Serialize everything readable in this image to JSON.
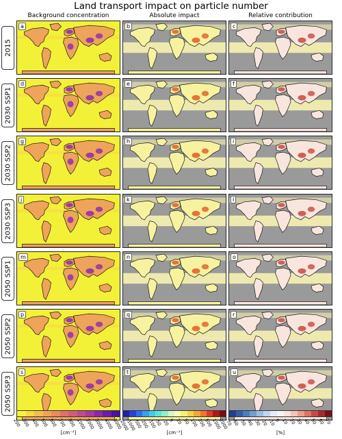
{
  "chart_data": {
    "type": "heatmap",
    "title": "Land transport impact on particle number",
    "columns": [
      "Background concentration",
      "Absolute impact",
      "Relative contribution"
    ],
    "rows": [
      "2015",
      "2030 SSP1",
      "2030 SSP2",
      "2030 SSP3",
      "2050 SSP1",
      "2050 SSP2",
      "2050 SSP3"
    ],
    "panel_letters": [
      "a",
      "b",
      "c",
      "d",
      "e",
      "f",
      "g",
      "h",
      "i",
      "j",
      "k",
      "l",
      "m",
      "n",
      "o",
      "p",
      "q",
      "r",
      "s",
      "t",
      "u"
    ],
    "colorbars": [
      {
        "name": "background",
        "ticks": [
          "200",
          "300",
          "400",
          "500",
          "600",
          "700",
          "800",
          "1000",
          "2000",
          "3000",
          "4000",
          "5000"
        ],
        "unit": "[cm⁻³]",
        "colors": [
          "#f7f43a",
          "#f7d93d",
          "#f5bd4a",
          "#f0a257",
          "#e98a63",
          "#df7070",
          "#d25c80",
          "#c04a91",
          "#aa38a0",
          "#8f27ac",
          "#6e19b0",
          "#4a0fa8"
        ]
      },
      {
        "name": "absolute",
        "ticks": [
          "-2000",
          "-1000",
          "-500",
          "-200",
          "-100",
          "-50",
          "-20",
          "0",
          "20",
          "50",
          "100",
          "200",
          "500",
          "1000",
          "2000"
        ],
        "unit": "[cm⁻³]",
        "colors": [
          "#1f1fa8",
          "#2a3fd8",
          "#2f6df0",
          "#35a0f5",
          "#40ccf0",
          "#5ee4d8",
          "#8ef0cc",
          "#d6f7c8",
          "#fafab8",
          "#f8f07a",
          "#f7d24a",
          "#f4a63a",
          "#ee7430",
          "#e03a2a",
          "#b01818",
          "#7a0c10"
        ]
      },
      {
        "name": "relative",
        "ticks": [
          "-70",
          "-60",
          "-50",
          "-40",
          "-30",
          "-20",
          "-10",
          "0",
          "10",
          "20",
          "30",
          "40",
          "50",
          "60",
          "70"
        ],
        "unit": "[%]",
        "colors": [
          "#1f3f8a",
          "#2f5fa8",
          "#4a7ec0",
          "#6f9ed4",
          "#98bee2",
          "#c0d8ee",
          "#e2ecf6",
          "#f6f4f2",
          "#fbe2da",
          "#f5c4b6",
          "#ec9e8a",
          "#de7464",
          "#c94a44",
          "#a82a2e",
          "#7a1018"
        ]
      }
    ]
  }
}
